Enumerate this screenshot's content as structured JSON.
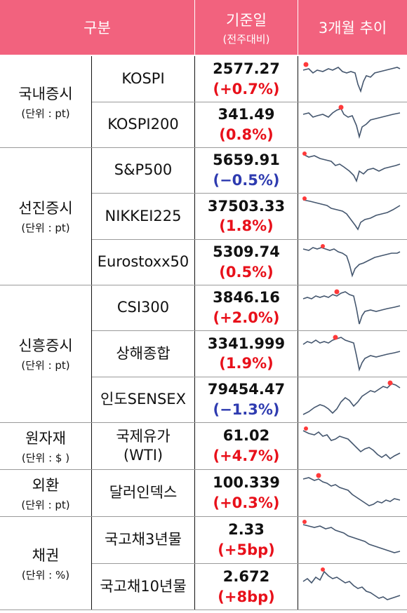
{
  "header": {
    "col1": "구분",
    "col3_main": "기준일",
    "col3_sub": "(전주대비)",
    "col4": "3개월 추이"
  },
  "colors": {
    "header_bg": "#f2627e",
    "up": "#e8101a",
    "down": "#2e3bb0",
    "spark_line": "#44566e",
    "spark_dot": "#ff3a3a"
  },
  "categories": [
    {
      "title": "국내증시",
      "unit": "(단위 : pt)"
    },
    {
      "title": "선진증시",
      "unit": "(단위 : pt)"
    },
    {
      "title": "신흥증시",
      "unit": "(단위 : pt)"
    },
    {
      "title": "원자재",
      "unit": "(단위 : $ )"
    },
    {
      "title": "외환",
      "unit": "(단위 : pt)"
    },
    {
      "title": "채권",
      "unit": "(단위 : %)"
    }
  ],
  "rows": [
    {
      "name": "KOSPI",
      "value": "2577.27",
      "change": "(+0.7%)",
      "dir": "up"
    },
    {
      "name": "KOSPI200",
      "value": "341.49",
      "change": "(0.8%)",
      "dir": "up"
    },
    {
      "name": "S&P500",
      "value": "5659.91",
      "change": "(−0.5%)",
      "dir": "down"
    },
    {
      "name": "NIKKEI225",
      "value": "37503.33",
      "change": "(1.8%)",
      "dir": "up"
    },
    {
      "name": "Eurostoxx50",
      "value": "5309.74",
      "change": "(0.5%)",
      "dir": "up"
    },
    {
      "name": "CSI300",
      "value": "3846.16",
      "change": "(+2.0%)",
      "dir": "up"
    },
    {
      "name": "상해종합",
      "value": "3341.999",
      "change": "(1.9%)",
      "dir": "up"
    },
    {
      "name": "인도SENSEX",
      "value": "79454.47",
      "change": "(−1.3%)",
      "dir": "down"
    },
    {
      "name": "국제유가",
      "name2": "(WTI)",
      "value": "61.02",
      "change": "(+4.7%)",
      "dir": "up"
    },
    {
      "name": "달러인덱스",
      "value": "100.339",
      "change": "(+0.3%)",
      "dir": "up"
    },
    {
      "name": "국고채3년물",
      "value": "2.33",
      "change": "(+5bp)",
      "dir": "up"
    },
    {
      "name": "국고채10년물",
      "value": "2.672",
      "change": "(+8bp)",
      "dir": "up"
    }
  ]
}
